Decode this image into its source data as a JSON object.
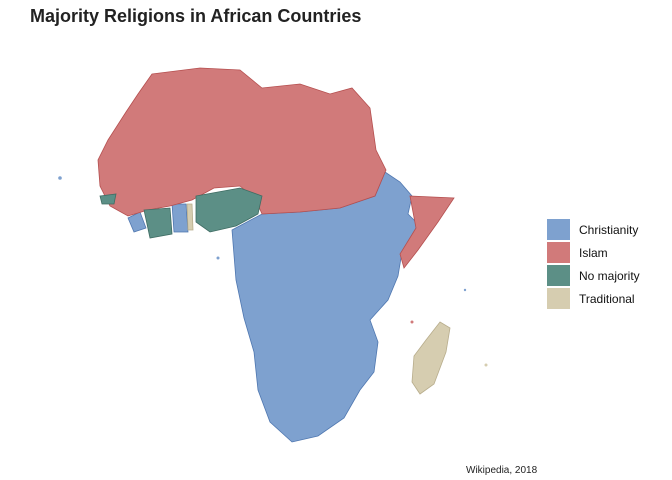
{
  "title": "Majority Religions in African Countries",
  "caption": "Wikipedia, 2018",
  "legend": [
    {
      "label": "Christianity",
      "color": "#7ea1cf"
    },
    {
      "label": "Islam",
      "color": "#d17a7a"
    },
    {
      "label": "No majority",
      "color": "#5c8f86"
    },
    {
      "label": "Traditional",
      "color": "#d6cdb0"
    }
  ]
}
